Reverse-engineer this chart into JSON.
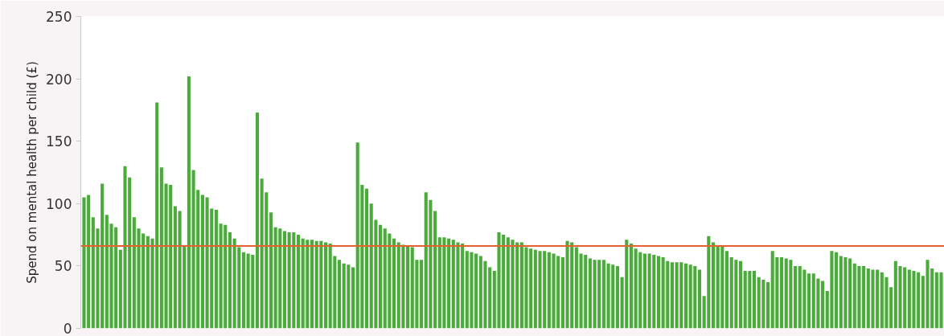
{
  "chart_data": {
    "type": "bar",
    "ylabel": "Spend on mental health per child (£)",
    "categories": [
      null,
      null,
      null,
      null,
      null,
      null,
      null,
      null,
      null,
      null,
      null,
      null,
      null,
      null,
      null,
      null,
      null,
      null,
      null,
      null,
      null,
      null,
      null,
      null,
      null,
      null,
      null,
      null,
      null,
      null,
      null,
      null,
      null,
      null,
      null,
      null,
      null,
      null,
      null,
      null,
      null,
      null,
      null,
      null,
      null,
      null,
      null,
      null,
      null,
      null,
      null,
      null,
      null,
      null,
      null,
      null,
      null,
      null,
      null,
      null,
      null,
      null,
      null,
      null,
      null,
      null,
      null,
      null,
      null,
      null,
      null,
      null,
      null,
      null,
      null,
      null,
      null,
      null,
      null,
      null,
      null,
      null,
      null,
      null,
      null,
      null,
      null,
      null,
      null,
      null,
      null,
      null,
      null,
      null,
      null,
      null,
      null,
      null,
      null,
      null,
      null,
      null,
      null,
      null,
      null,
      null,
      null,
      null,
      null,
      null,
      null,
      null,
      null,
      null,
      null,
      null,
      null,
      null,
      null,
      null,
      null,
      null,
      null,
      null,
      null,
      null,
      null,
      null,
      null,
      null,
      null,
      null,
      null,
      null,
      null,
      null,
      null,
      null,
      null,
      null,
      null,
      null,
      null,
      null,
      null,
      null,
      null,
      null,
      null,
      null,
      null,
      null,
      null,
      null,
      null,
      null,
      null,
      null,
      null,
      null,
      null,
      null,
      null,
      null,
      null,
      null,
      null,
      null,
      null,
      null,
      null,
      null,
      null,
      null,
      null,
      null,
      null,
      null,
      null,
      null,
      null,
      null,
      null,
      null,
      null,
      null,
      null,
      null,
      null
    ],
    "values": [
      105,
      107,
      89,
      80,
      116,
      91,
      84,
      81,
      63,
      130,
      121,
      89,
      80,
      76,
      74,
      72,
      181,
      129,
      116,
      115,
      98,
      94,
      66,
      202,
      127,
      111,
      107,
      105,
      96,
      95,
      84,
      83,
      77,
      72,
      65,
      61,
      60,
      59,
      173,
      120,
      109,
      93,
      81,
      80,
      78,
      77,
      77,
      75,
      72,
      71,
      71,
      70,
      70,
      69,
      68,
      58,
      55,
      52,
      51,
      49,
      149,
      115,
      112,
      100,
      87,
      83,
      80,
      76,
      72,
      69,
      67,
      66,
      65,
      55,
      55,
      109,
      103,
      94,
      73,
      73,
      72,
      71,
      69,
      68,
      62,
      61,
      60,
      58,
      54,
      49,
      46,
      77,
      75,
      73,
      71,
      69,
      69,
      65,
      64,
      63,
      62,
      62,
      61,
      60,
      58,
      57,
      70,
      69,
      65,
      60,
      59,
      56,
      55,
      55,
      55,
      52,
      51,
      50,
      41,
      71,
      68,
      64,
      61,
      60,
      60,
      59,
      58,
      57,
      54,
      53,
      53,
      53,
      52,
      51,
      50,
      47,
      26,
      74,
      69,
      66,
      66,
      62,
      57,
      55,
      54,
      46,
      46,
      46,
      41,
      39,
      37,
      62,
      57,
      57,
      56,
      55,
      50,
      50,
      47,
      44,
      44,
      40,
      38,
      30,
      62,
      61,
      58,
      57,
      56,
      52,
      50,
      50,
      48,
      47,
      47,
      45,
      41,
      33,
      54,
      50,
      49,
      47,
      46,
      45,
      42,
      55,
      48,
      45,
      45
    ],
    "color": "#4aab3b",
    "ylim": [
      0,
      250
    ],
    "yticks": [
      0,
      50,
      100,
      150,
      200,
      250
    ],
    "tick_labels": "y",
    "ref_lines": [
      {
        "axis": "y",
        "value": 66,
        "color": "#e8602c"
      }
    ]
  }
}
